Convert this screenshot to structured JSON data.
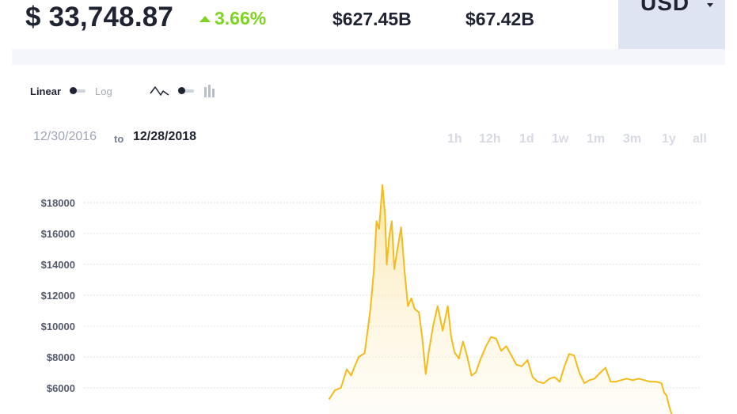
{
  "header": {
    "price": "$ 33,748.87",
    "change": "3.66%",
    "stat_1": "$627.45B",
    "stat_2": "$67.42B",
    "currency": "USD"
  },
  "scale": {
    "linear_label": "Linear",
    "log_label": "Log"
  },
  "date_range": {
    "from": "12/30/2016",
    "to_word": "to",
    "to": "12/28/2018"
  },
  "range_buttons": [
    "1h",
    "12h",
    "1d",
    "1w",
    "1m",
    "3m",
    "1y",
    "all"
  ],
  "colors": {
    "line": "#f4bb1a",
    "up": "#7ed321",
    "accent_box": "#dfe4f3"
  },
  "chart_data": {
    "type": "area",
    "y_tick_labels": [
      "$18000",
      "$16000",
      "$14000",
      "$12000",
      "$10000",
      "$8000",
      "$6000"
    ],
    "ylim": [
      5000,
      19000
    ],
    "xlim": [
      "2016-12-30",
      "2018-12-28"
    ],
    "series": [
      {
        "x": [
          "2017-10-15",
          "2017-10-22",
          "2017-10-29",
          "2017-11-05",
          "2017-11-10",
          "2017-11-15",
          "2017-11-19",
          "2017-11-26",
          "2017-11-30",
          "2017-12-03",
          "2017-12-07",
          "2017-12-10",
          "2017-12-13",
          "2017-12-17",
          "2017-12-20",
          "2017-12-22",
          "2017-12-25",
          "2017-12-28",
          "2017-12-31",
          "2018-01-04",
          "2018-01-08",
          "2018-01-12",
          "2018-01-16",
          "2018-01-20",
          "2018-01-24",
          "2018-01-29",
          "2018-02-02",
          "2018-02-06",
          "2018-02-10",
          "2018-02-15",
          "2018-02-20",
          "2018-02-26",
          "2018-03-04",
          "2018-03-08",
          "2018-03-12",
          "2018-03-17",
          "2018-03-22",
          "2018-03-27",
          "2018-04-01",
          "2018-04-06",
          "2018-04-12",
          "2018-04-18",
          "2018-04-24",
          "2018-04-30",
          "2018-05-06",
          "2018-05-12",
          "2018-05-18",
          "2018-05-24",
          "2018-05-30",
          "2018-06-06",
          "2018-06-12",
          "2018-06-18",
          "2018-06-25",
          "2018-07-02",
          "2018-07-08",
          "2018-07-14",
          "2018-07-19",
          "2018-07-25",
          "2018-07-31",
          "2018-08-06",
          "2018-08-12",
          "2018-08-18",
          "2018-08-24",
          "2018-08-31",
          "2018-09-06",
          "2018-09-12",
          "2018-09-18",
          "2018-09-24",
          "2018-10-01",
          "2018-10-08",
          "2018-10-15",
          "2018-10-22",
          "2018-10-29",
          "2018-11-05",
          "2018-11-11",
          "2018-11-14",
          "2018-11-17",
          "2018-11-20",
          "2018-11-23"
        ],
        "y": [
          5250,
          5850,
          6000,
          7200,
          6800,
          7500,
          8000,
          8250,
          9900,
          11200,
          13700,
          16800,
          16300,
          19150,
          17200,
          14000,
          15800,
          16800,
          13700,
          15100,
          16400,
          13600,
          11300,
          11800,
          11100,
          10900,
          9200,
          6900,
          8500,
          10100,
          11300,
          9700,
          11300,
          9300,
          8300,
          7900,
          9000,
          8000,
          6800,
          7000,
          7900,
          8700,
          9300,
          9200,
          8400,
          8700,
          8100,
          7500,
          7400,
          7800,
          6700,
          6400,
          6300,
          6600,
          6700,
          6400,
          7300,
          8200,
          8100,
          7000,
          6300,
          6500,
          6600,
          7000,
          7300,
          6400,
          6400,
          6500,
          6600,
          6500,
          6600,
          6500,
          6400,
          6400,
          6300,
          5700,
          5500,
          4800,
          4300
        ]
      }
    ]
  }
}
